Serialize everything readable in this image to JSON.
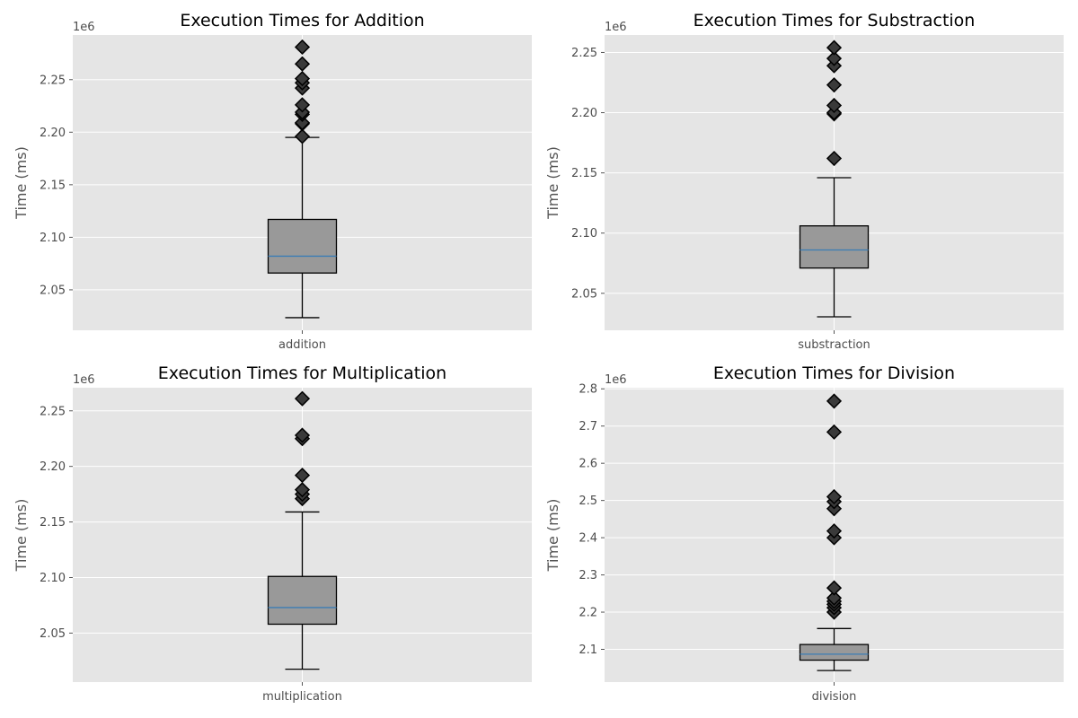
{
  "colors": {
    "plot_bg": "#e5e5e5",
    "grid": "#ffffff",
    "box_fill": "#999999",
    "box_edge": "#000000",
    "median": "#3b7db5",
    "flier_fill": "#3a3a3a",
    "flier_edge": "#000000"
  },
  "chart_data": [
    {
      "type": "box",
      "title": "Execution Times for Addition",
      "ylabel": "Time (ms)",
      "category": "addition",
      "offset_label": "1e6",
      "ylim": [
        2.0115,
        2.2925
      ],
      "yticks": [
        2.05,
        2.1,
        2.15,
        2.2,
        2.25
      ],
      "ytick_labels": [
        "2.05",
        "2.10",
        "2.15",
        "2.20",
        "2.25"
      ],
      "grid": true,
      "whisker_low": 2.0235,
      "q1": 2.066,
      "median": 2.082,
      "q3": 2.117,
      "whisker_high": 2.195,
      "fliers": [
        2.196,
        2.208,
        2.209,
        2.217,
        2.219,
        2.226,
        2.242,
        2.247,
        2.251,
        2.265,
        2.281
      ]
    },
    {
      "type": "box",
      "title": "Execution Times for Substraction",
      "ylabel": "Time (ms)",
      "category": "substraction",
      "offset_label": "1e6",
      "ylim": [
        2.0193,
        2.2645
      ],
      "yticks": [
        2.05,
        2.1,
        2.15,
        2.2,
        2.25
      ],
      "ytick_labels": [
        "2.05",
        "2.10",
        "2.15",
        "2.20",
        "2.25"
      ],
      "grid": true,
      "whisker_low": 2.0305,
      "q1": 2.071,
      "median": 2.086,
      "q3": 2.106,
      "whisker_high": 2.146,
      "fliers": [
        2.162,
        2.199,
        2.2,
        2.206,
        2.223,
        2.239,
        2.245,
        2.254
      ]
    },
    {
      "type": "box",
      "title": "Execution Times for Multiplication",
      "ylabel": "Time (ms)",
      "category": "multiplication",
      "offset_label": "1e6",
      "ylim": [
        2.0059,
        2.2708
      ],
      "yticks": [
        2.05,
        2.1,
        2.15,
        2.2,
        2.25
      ],
      "ytick_labels": [
        "2.05",
        "2.10",
        "2.15",
        "2.20",
        "2.25"
      ],
      "grid": true,
      "whisker_low": 2.0175,
      "q1": 2.058,
      "median": 2.073,
      "q3": 2.101,
      "whisker_high": 2.159,
      "fliers": [
        2.171,
        2.175,
        2.179,
        2.192,
        2.225,
        2.228,
        2.261
      ]
    },
    {
      "type": "box",
      "title": "Execution Times for Division",
      "ylabel": "Time (ms)",
      "category": "division",
      "offset_label": "1e6",
      "ylim": [
        2.012,
        2.803
      ],
      "yticks": [
        2.1,
        2.2,
        2.3,
        2.4,
        2.5,
        2.6,
        2.7,
        2.8
      ],
      "ytick_labels": [
        "2.1",
        "2.2",
        "2.3",
        "2.4",
        "2.5",
        "2.6",
        "2.7",
        "2.8"
      ],
      "grid": true,
      "whisker_low": 2.043,
      "q1": 2.071,
      "median": 2.087,
      "q3": 2.113,
      "whisker_high": 2.156,
      "fliers": [
        2.2,
        2.212,
        2.221,
        2.229,
        2.238,
        2.265,
        2.4,
        2.418,
        2.478,
        2.497,
        2.51,
        2.684,
        2.767
      ]
    }
  ]
}
